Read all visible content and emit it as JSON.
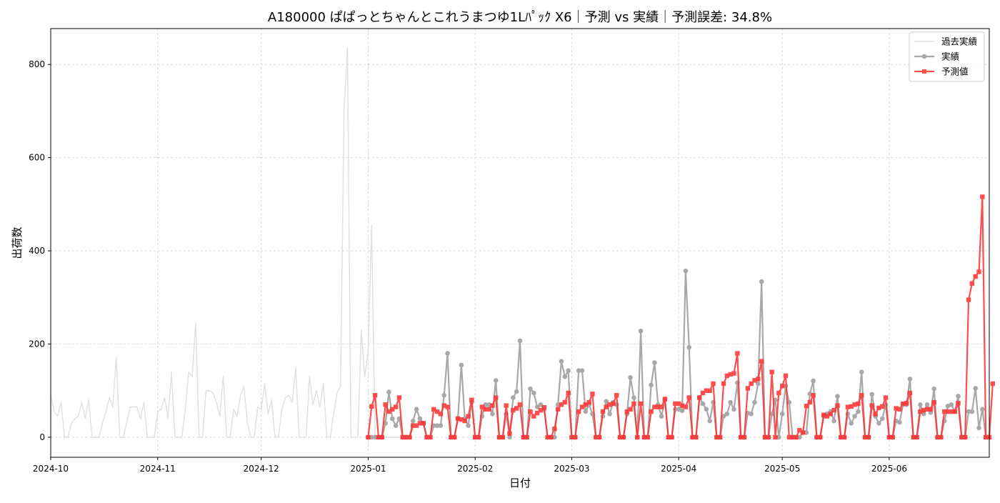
{
  "chart_data": {
    "type": "line",
    "title": "A180000 ぱぱっとちゃんとこれうまつゆ1Lﾊﾟｯｸ X6｜予測 vs 実績｜予測誤差: 34.8%",
    "xlabel": "日付",
    "ylabel": "出荷数",
    "x_range": [
      "2024-10-01",
      "2025-06-30"
    ],
    "ylim": [
      -43,
      877
    ],
    "x_ticks": [
      {
        "date": "2024-10-01",
        "label": "2024-10"
      },
      {
        "date": "2024-11-01",
        "label": "2024-11"
      },
      {
        "date": "2024-12-01",
        "label": "2024-12"
      },
      {
        "date": "2025-01-01",
        "label": "2025-01"
      },
      {
        "date": "2025-02-01",
        "label": "2025-02"
      },
      {
        "date": "2025-03-01",
        "label": "2025-03"
      },
      {
        "date": "2025-04-01",
        "label": "2025-04"
      },
      {
        "date": "2025-05-01",
        "label": "2025-05"
      },
      {
        "date": "2025-06-01",
        "label": "2025-06"
      }
    ],
    "y_ticks": [
      0,
      200,
      400,
      600,
      800
    ],
    "grid": true,
    "legend_position": "top-right",
    "series": [
      {
        "name": "過去実績",
        "color": "#d9d9d9",
        "marker": "none",
        "start_date": "2024-10-01",
        "values": [
          90,
          55,
          45,
          75,
          0,
          0,
          30,
          40,
          45,
          75,
          40,
          80,
          0,
          0,
          0,
          30,
          55,
          85,
          65,
          172,
          0,
          0,
          30,
          65,
          65,
          65,
          40,
          75,
          0,
          0,
          0,
          55,
          60,
          85,
          40,
          140,
          0,
          0,
          0,
          60,
          140,
          130,
          245,
          0,
          0,
          100,
          100,
          95,
          75,
          45,
          130,
          0,
          0,
          60,
          45,
          90,
          110,
          30,
          0,
          0,
          65,
          60,
          115,
          50,
          80,
          0,
          0,
          60,
          85,
          90,
          75,
          150,
          0,
          0,
          0,
          130,
          70,
          100,
          65,
          115,
          0,
          0,
          50,
          95,
          110,
          700,
          835,
          0,
          0,
          0,
          230,
          130,
          185,
          455,
          0,
          0,
          0,
          0,
          0,
          0,
          0,
          0
        ]
      },
      {
        "name": "実績",
        "color": "#999999",
        "marker": "circle",
        "start_date": "2025-01-01",
        "values": [
          0,
          0,
          0,
          0,
          0,
          30,
          97,
          40,
          25,
          40,
          0,
          0,
          0,
          35,
          60,
          40,
          30,
          0,
          0,
          25,
          25,
          25,
          90,
          180,
          0,
          0,
          40,
          155,
          40,
          25,
          75,
          0,
          0,
          45,
          70,
          70,
          50,
          122,
          0,
          0,
          50,
          0,
          85,
          98,
          207,
          0,
          0,
          104,
          95,
          65,
          70,
          60,
          0,
          0,
          0,
          70,
          163,
          130,
          143,
          0,
          0,
          143,
          143,
          55,
          70,
          50,
          0,
          0,
          45,
          77,
          50,
          75,
          70,
          0,
          0,
          50,
          128,
          85,
          0,
          228,
          0,
          0,
          112,
          160,
          70,
          45,
          80,
          0,
          0,
          60,
          60,
          57,
          357,
          193,
          0,
          0,
          85,
          72,
          60,
          35,
          75,
          0,
          0,
          45,
          50,
          75,
          60,
          117,
          0,
          0,
          52,
          50,
          75,
          115,
          334,
          0,
          0,
          50,
          80,
          0,
          50,
          110,
          75,
          0,
          0,
          0,
          10,
          10,
          93,
          121,
          0,
          0,
          45,
          50,
          55,
          35,
          88,
          0,
          0,
          50,
          30,
          45,
          55,
          140,
          0,
          0,
          92,
          45,
          30,
          40,
          70,
          0,
          0,
          35,
          32,
          70,
          70,
          125,
          0,
          0,
          70,
          50,
          70,
          53,
          104,
          0,
          0,
          35,
          67,
          70,
          55,
          88,
          0,
          0,
          55,
          55,
          105,
          20,
          60,
          0
        ]
      },
      {
        "name": "予測値",
        "color": "#ff2f2f",
        "marker": "square",
        "start_date": "2025-01-01",
        "values": [
          0,
          66,
          90,
          0,
          0,
          70,
          55,
          60,
          65,
          85,
          0,
          0,
          0,
          25,
          25,
          30,
          30,
          0,
          0,
          60,
          55,
          50,
          68,
          65,
          0,
          0,
          40,
          38,
          35,
          45,
          80,
          0,
          0,
          65,
          60,
          60,
          68,
          85,
          0,
          0,
          68,
          8,
          58,
          62,
          70,
          0,
          0,
          55,
          45,
          52,
          58,
          64,
          0,
          0,
          18,
          60,
          70,
          75,
          95,
          0,
          0,
          55,
          65,
          70,
          75,
          93,
          0,
          0,
          55,
          65,
          70,
          72,
          90,
          0,
          0,
          55,
          60,
          72,
          0,
          72,
          0,
          0,
          55,
          65,
          65,
          65,
          82,
          0,
          0,
          72,
          72,
          68,
          65,
          85,
          0,
          0,
          85,
          95,
          100,
          100,
          115,
          0,
          0,
          115,
          132,
          135,
          137,
          180,
          0,
          0,
          105,
          115,
          122,
          125,
          163,
          0,
          0,
          140,
          0,
          95,
          110,
          132,
          0,
          0,
          0,
          15,
          10,
          67,
          75,
          90,
          0,
          0,
          48,
          45,
          50,
          58,
          68,
          0,
          0,
          65,
          66,
          70,
          72,
          90,
          0,
          0,
          68,
          50,
          63,
          66,
          85,
          0,
          0,
          62,
          60,
          72,
          73,
          95,
          0,
          0,
          55,
          58,
          60,
          60,
          75,
          0,
          0,
          55,
          55,
          55,
          55,
          73,
          0,
          0,
          295,
          330,
          345,
          355,
          516,
          0,
          0,
          115
        ]
      }
    ]
  }
}
